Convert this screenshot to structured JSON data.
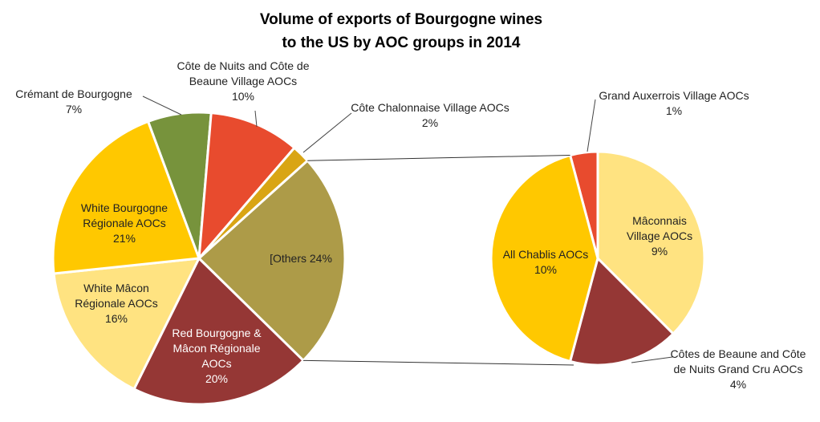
{
  "chart_data": {
    "type": "pie-of-pie",
    "title": "Volume of exports of Bourgogne wines\nto the US by AOC groups in 2014",
    "pies": [
      {
        "categories": [
          "Crémant de Bourgogne",
          "Côte de Nuits and Côte de Beaune Village AOCs",
          "Côte Chalonnaise Village AOCs",
          "[Others",
          "Red Bourgogne & Mâcon Régionale AOCs",
          "White Mâcon Régionale AOCs",
          "White Bourgogne Régionale AOCs"
        ],
        "values": [
          7,
          10,
          2,
          24,
          20,
          16,
          21
        ],
        "value_labels": [
          "7%",
          "10%",
          "2%",
          "24%",
          "20%",
          "16%",
          "21%"
        ],
        "colors": [
          "#77933c",
          "#e84b2e",
          "#d9a514",
          "#ad9b48",
          "#953735",
          "#ffe381",
          "#ffc800"
        ]
      },
      {
        "categories": [
          "Grand Auxerrois Village AOCs",
          "Mâconnais Village AOCs",
          "Côtes de Beaune and Côte de Nuits Grand Cru AOCs",
          "All Chablis AOCs"
        ],
        "values": [
          1,
          9,
          4,
          10
        ],
        "value_labels": [
          "1%",
          "9%",
          "4%",
          "10%"
        ],
        "colors": [
          "#e84b2e",
          "#ffe381",
          "#953735",
          "#ffc800"
        ]
      }
    ]
  }
}
